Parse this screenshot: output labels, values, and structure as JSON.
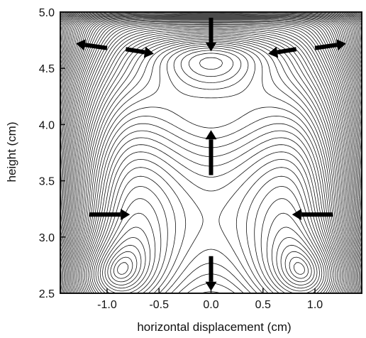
{
  "chart_data": {
    "type": "contour",
    "title": "",
    "xlabel": "horizontal displacement (cm)",
    "ylabel": "height (cm)",
    "xlim": [
      -1.45,
      1.45
    ],
    "ylim": [
      2.5,
      5.0
    ],
    "x_ticks": [
      {
        "value": -1.0,
        "label": "-1.0"
      },
      {
        "value": -0.5,
        "label": "-0.5"
      },
      {
        "value": 0.0,
        "label": "0.0"
      },
      {
        "value": 0.5,
        "label": "0.5"
      },
      {
        "value": 1.0,
        "label": "1.0"
      }
    ],
    "y_ticks": [
      {
        "value": 2.5,
        "label": "2.5"
      },
      {
        "value": 3.0,
        "label": "3.0"
      },
      {
        "value": 3.5,
        "label": "3.5"
      },
      {
        "value": 4.0,
        "label": "4.0"
      },
      {
        "value": 4.5,
        "label": "4.5"
      },
      {
        "value": 5.0,
        "label": "5.0"
      }
    ],
    "grid": false,
    "legend": "none",
    "critical_points": [
      {
        "kind": "saddle",
        "x": 0.0,
        "y": 3.15
      },
      {
        "kind": "minimum",
        "x": 0.0,
        "y": 4.55
      },
      {
        "kind": "saddle",
        "x": -1.45,
        "y": 4.7
      },
      {
        "kind": "saddle",
        "x": 1.45,
        "y": 4.7
      }
    ],
    "flow_arrows": [
      {
        "from": [
          0.0,
          4.95
        ],
        "to": [
          0.0,
          4.65
        ],
        "direction": "down"
      },
      {
        "from": [
          0.0,
          3.55
        ],
        "to": [
          0.0,
          3.95
        ],
        "direction": "up"
      },
      {
        "from": [
          0.0,
          2.83
        ],
        "to": [
          0.0,
          2.52
        ],
        "direction": "down"
      },
      {
        "from": [
          -1.17,
          3.2
        ],
        "to": [
          -0.78,
          3.2
        ],
        "direction": "right"
      },
      {
        "from": [
          1.17,
          3.2
        ],
        "to": [
          0.78,
          3.2
        ],
        "direction": "left"
      },
      {
        "from": [
          -1.0,
          4.68
        ],
        "to": [
          -1.3,
          4.72
        ],
        "direction": "left"
      },
      {
        "from": [
          -0.82,
          4.67
        ],
        "to": [
          -0.55,
          4.63
        ],
        "direction": "right"
      },
      {
        "from": [
          0.82,
          4.67
        ],
        "to": [
          0.55,
          4.63
        ],
        "direction": "left"
      },
      {
        "from": [
          1.0,
          4.68
        ],
        "to": [
          1.3,
          4.72
        ],
        "direction": "right"
      }
    ],
    "colors": {
      "line": "#111111",
      "arrow": "#000000",
      "background": "#ffffff"
    }
  }
}
